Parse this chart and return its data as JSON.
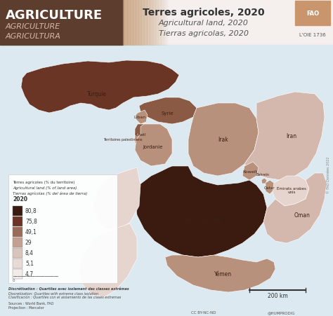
{
  "title_main": "Terres agricoles, 2020",
  "title_sub1": "Agricultural land, 2020",
  "title_sub2": "Tierras agricolas, 2020",
  "header_label1": "AGRICULTURE",
  "header_label2": "AGRICULTURE",
  "header_label3": "AGRICULTURA",
  "header_bg": "#5c3d2e",
  "background_color": "#dce9f0",
  "map_bg": "#dce9f0",
  "legend_title1": "Terres agricoles (% du territoire)",
  "legend_title2": "Agricultural land (% of land area)",
  "legend_title3": "Tierras agrícolas (% del área de tierra)",
  "legend_year": "2020",
  "legend_values": [
    "80,8",
    "75,8",
    "49,1",
    "29",
    "8,4",
    "5,1",
    "4,7"
  ],
  "legend_colors": [
    "#3b1a10",
    "#6b3525",
    "#9b6b5a",
    "#c4a090",
    "#d9c4bc",
    "#e8dbd7",
    "#f2ece9"
  ],
  "disc_text1": "Discrétisation : Quartiles avec isolement des classes extrêmes",
  "disc_text2": "Discretization: Quartiles with extreme class isolation",
  "disc_text3": "Clasificación : Quartiles con el aislamiento de las clases extremas",
  "sources": "Sources : World Bank, FAO",
  "projection": "Projection : Mercator",
  "scale_bar_label": "200 km",
  "copyright": "CC BY-NC-ND",
  "provider": "@HUMPRODIG"
}
